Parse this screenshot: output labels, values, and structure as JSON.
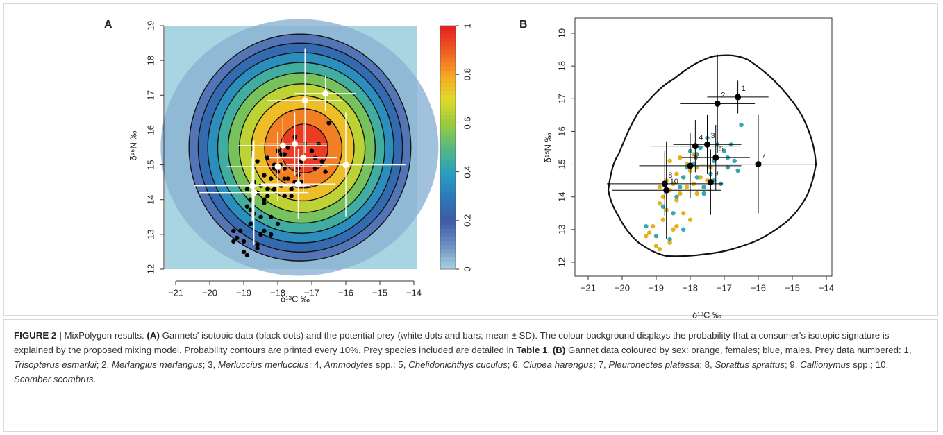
{
  "chart_data": [
    {
      "type": "contour",
      "title": "A",
      "x_label": "δ¹³C ‰",
      "y_label": "δ¹⁵N ‰",
      "xlim": [
        -21,
        -14
      ],
      "xticks": [
        {
          "value": -21,
          "label": "−21"
        },
        {
          "value": -20,
          "label": "−20"
        },
        {
          "value": -19,
          "label": "−19"
        },
        {
          "value": -18,
          "label": "−18"
        },
        {
          "value": -17,
          "label": "−17"
        },
        {
          "value": -16,
          "label": "−16"
        },
        {
          "value": -15,
          "label": "−15"
        },
        {
          "value": -14,
          "label": "−14"
        }
      ],
      "ylim": [
        12,
        19
      ],
      "yticks": [
        12,
        13,
        14,
        15,
        16,
        17,
        18,
        19
      ],
      "colorbar": {
        "lim": [
          0,
          1
        ],
        "ticks": [
          0,
          0.2,
          0.4,
          0.6,
          0.8,
          1
        ],
        "colors": [
          "#a9d4e2",
          "#6a8fc4",
          "#3d5aa6",
          "#2b7bba",
          "#2ca0c0",
          "#56b97f",
          "#9acb3c",
          "#e0d92b",
          "#f7a325",
          "#ef5a22",
          "#e41e22"
        ]
      },
      "contour_levels": [
        0.1,
        0.2,
        0.3,
        0.4,
        0.5,
        0.6,
        0.7,
        0.8,
        0.9
      ],
      "gannet_color": "#000000",
      "prey": {
        "color": "#ffffff",
        "x": [
          -16.6,
          -17.2,
          -17.5,
          -17.85,
          -17.25,
          -18.0,
          -16.0,
          -18.75,
          -17.4,
          -18.7
        ],
        "values": [
          17.05,
          16.85,
          15.6,
          15.55,
          15.2,
          14.95,
          15.0,
          14.4,
          14.45,
          14.2
        ],
        "x_err": [
          0.9,
          1.1,
          1.0,
          1.3,
          1.0,
          1.5,
          1.75,
          1.7,
          1.1,
          1.6
        ],
        "y_err": [
          0.5,
          1.5,
          0.9,
          0.8,
          1.0,
          1.0,
          1.5,
          1.0,
          1.0,
          1.5
        ]
      }
    },
    {
      "type": "scatter",
      "title": "B",
      "x_label": "δ¹³C ‰",
      "y_label": "δ¹⁵N ‰",
      "xlim": [
        -21,
        -14
      ],
      "xticks": [
        {
          "value": -21,
          "label": "−21"
        },
        {
          "value": -20,
          "label": "−20"
        },
        {
          "value": -19,
          "label": "−19"
        },
        {
          "value": -18,
          "label": "−18"
        },
        {
          "value": -17,
          "label": "−17"
        },
        {
          "value": -16,
          "label": "−16"
        },
        {
          "value": -15,
          "label": "−15"
        },
        {
          "value": -14,
          "label": "−14"
        }
      ],
      "ylim": [
        12,
        19
      ],
      "yticks": [
        12,
        13,
        14,
        15,
        16,
        17,
        18,
        19
      ],
      "series": [
        {
          "color": "#e3b21a",
          "x": [
            -19.3,
            -19.2,
            -19.1,
            -19.0,
            -18.9,
            -18.9,
            -18.8,
            -18.8,
            -18.7,
            -18.7,
            -18.6,
            -18.6,
            -18.5,
            -18.5,
            -18.4,
            -18.4,
            -18.3,
            -18.3,
            -18.2,
            -18.2,
            -18.1,
            -18.1,
            -18.0,
            -18.0,
            -17.9,
            -17.9,
            -17.8,
            -17.8,
            -17.7,
            -17.6,
            -17.5,
            -17.4,
            -18.6,
            -18.9,
            -18.4
          ],
          "values": [
            12.8,
            12.9,
            13.1,
            12.5,
            12.4,
            13.8,
            13.3,
            14.0,
            14.5,
            13.6,
            14.2,
            12.6,
            13.0,
            14.4,
            13.9,
            14.7,
            14.1,
            15.2,
            13.5,
            14.6,
            14.3,
            15.0,
            13.3,
            14.8,
            14.4,
            15.3,
            14.1,
            14.9,
            14.6,
            14.3,
            14.5,
            14.9,
            15.1,
            14.3,
            13.1
          ]
        },
        {
          "color": "#35a8b3",
          "x": [
            -19.3,
            -19.0,
            -18.8,
            -18.6,
            -18.5,
            -18.4,
            -18.3,
            -18.2,
            -18.1,
            -18.0,
            -17.9,
            -17.8,
            -17.7,
            -17.6,
            -17.5,
            -17.4,
            -17.3,
            -17.2,
            -17.1,
            -17.0,
            -16.9,
            -16.8,
            -16.7,
            -16.6,
            -16.5,
            -17.6,
            -17.3,
            -16.9,
            -18.2,
            -17.8
          ],
          "values": [
            13.1,
            12.8,
            13.7,
            12.7,
            13.5,
            14.0,
            14.3,
            13.0,
            14.9,
            15.4,
            15.0,
            14.6,
            15.5,
            14.3,
            15.8,
            14.7,
            15.1,
            15.6,
            14.4,
            15.4,
            14.9,
            15.6,
            15.1,
            14.8,
            16.2,
            14.1,
            14.5,
            15.2,
            14.6,
            15.3
          ]
        }
      ],
      "prey_color": "#000000",
      "prey_labels": [
        "1",
        "2",
        "3",
        "4",
        "5",
        "6",
        "7",
        "8",
        "9",
        "10"
      ]
    }
  ],
  "caption": [
    "FIGURE 2 |",
    " MixPolygon results. ",
    "(A)",
    " Gannets' isotopic data (black dots) and the potential prey (white dots and bars; mean ± SD). The colour background displays the probability that a consumer's isotopic signature is explained by the proposed mixing model. Probability contours are printed every 10%. Prey species included are detailed in ",
    "Table 1",
    ". ",
    "(B)",
    " Gannet data coloured by sex: orange, females; blue, males. Prey data numbered: 1, ",
    "Trisopterus esmarkii",
    "; 2, ",
    "Merlangius merlangus",
    "; 3, ",
    "Merluccius merluccius",
    "; 4, ",
    "Ammodytes",
    " spp.; 5, ",
    "Chelidonichthys cuculus",
    "; 6, ",
    "Clupea harengus",
    "; 7, ",
    "Pleuronectes platessa",
    "; 8, ",
    "Sprattus sprattus",
    "; 9, ",
    "Callionymus",
    " spp.; 10, ",
    "Scomber scombrus",
    "."
  ]
}
